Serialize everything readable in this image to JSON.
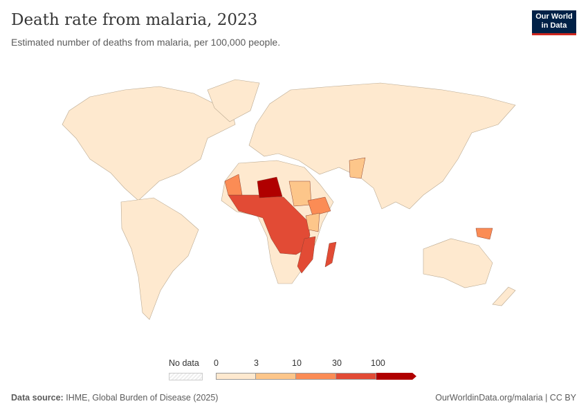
{
  "header": {
    "title": "Death rate from malaria, 2023",
    "subtitle": "Estimated number of deaths from malaria, per 100,000 people.",
    "logo": "Our World in Data"
  },
  "legend": {
    "no_data_label": "No data",
    "ticks": [
      "0",
      "3",
      "10",
      "30",
      "100"
    ],
    "bins": [
      {
        "range": "0–3",
        "color": "#fee9cf"
      },
      {
        "range": "3–10",
        "color": "#fdc68a"
      },
      {
        "range": "10–30",
        "color": "#fb8c55"
      },
      {
        "range": "30–100",
        "color": "#e24b35"
      },
      {
        "range": ">100",
        "color": "#b00000"
      }
    ],
    "no_data_color": "#eeeeee"
  },
  "map": {
    "highlighted_regions": [
      {
        "region": "Niger",
        "bin": ">100"
      },
      {
        "region": "Western & Central Africa",
        "bin": "30–100"
      },
      {
        "region": "Mozambique",
        "bin": "30–100"
      },
      {
        "region": "Madagascar",
        "bin": "30–100"
      },
      {
        "region": "Ethiopia",
        "bin": "10–30"
      },
      {
        "region": "Mauritania",
        "bin": "10–30"
      },
      {
        "region": "Papua New Guinea",
        "bin": "10–30"
      },
      {
        "region": "Sudan",
        "bin": "3–10"
      },
      {
        "region": "Pakistan",
        "bin": "3–10"
      },
      {
        "region": "Kenya",
        "bin": "3–10"
      },
      {
        "region": "Rest of world",
        "bin": "0–3"
      }
    ]
  },
  "footer": {
    "source_label": "Data source:",
    "source": "IHME, Global Burden of Disease (2025)",
    "link": "OurWorldinData.org/malaria | CC BY"
  }
}
